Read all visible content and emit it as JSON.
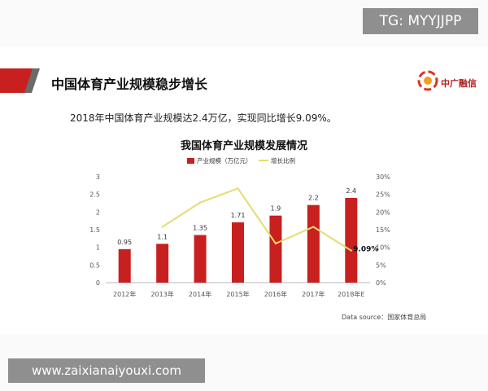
{
  "watermark_top": "TG: MYYJJPP",
  "watermark_bottom": "www.zaixianaiyouxi.com",
  "header": {
    "title": "中国体育产业规模稳步增长",
    "logo_text": "中广融信",
    "accent_color": "#c8201e"
  },
  "summary_text": "2018年中国体育产业规模达2.4万亿，实现同比增长9.09%。",
  "data_source": "Data source：国家体育总局",
  "chart_data": {
    "type": "bar",
    "title": "我国体育产业规模发展情况",
    "categories": [
      "2012年",
      "2013年",
      "2014年",
      "2015年",
      "2016年",
      "2017年",
      "2018年E"
    ],
    "series": [
      {
        "name": "产业规模（万亿元）",
        "kind": "bar",
        "axis": "left",
        "color": "#c8201e",
        "values": [
          0.95,
          1.1,
          1.35,
          1.71,
          1.9,
          2.2,
          2.4
        ],
        "labels": [
          "0.95",
          "1.1",
          "1.35",
          "1.71",
          "1.9",
          "2.2",
          "2.4"
        ]
      },
      {
        "name": "增长比例",
        "kind": "line",
        "axis": "right",
        "color": "#e3dd72",
        "values": [
          null,
          15.8,
          22.7,
          26.7,
          11.1,
          15.8,
          9.09
        ]
      }
    ],
    "annotations": [
      {
        "text": "9.09%",
        "category": "2018年E",
        "series": "增长比例"
      }
    ],
    "y_left": {
      "ticks": [
        "0",
        "0.5",
        "1",
        "1.5",
        "2",
        "2.5",
        "3"
      ],
      "ylim": [
        0,
        3
      ]
    },
    "y_right": {
      "ticks": [
        "0%",
        "5%",
        "10%",
        "15%",
        "20%",
        "25%",
        "30%"
      ],
      "ylim": [
        0,
        30
      ]
    },
    "legend_position": "top-center",
    "grid": false
  }
}
